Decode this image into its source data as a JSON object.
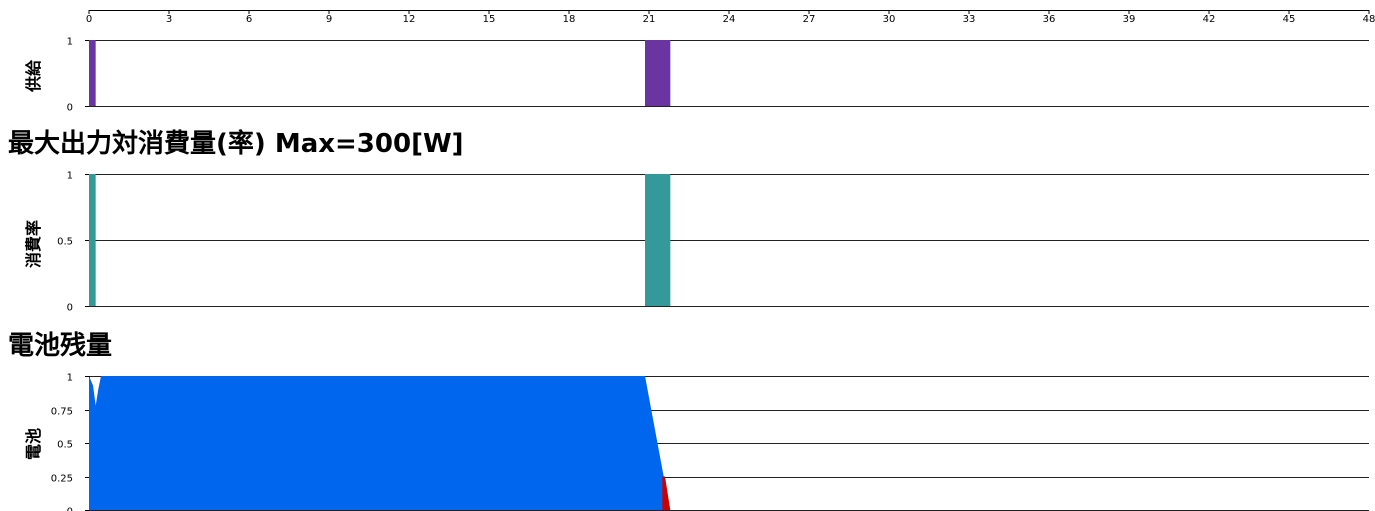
{
  "x_axis": {
    "ticks": [
      "0",
      "3",
      "6",
      "9",
      "12",
      "15",
      "18",
      "21",
      "24",
      "27",
      "30",
      "33",
      "36",
      "39",
      "42",
      "45",
      "48"
    ]
  },
  "chart_data": [
    {
      "type": "bar",
      "title": "",
      "ylabel": "供給",
      "xlim": [
        0,
        48
      ],
      "ylim": [
        0,
        1
      ],
      "yticks": [
        "0",
        "1"
      ],
      "color": "#6a35a0",
      "bars": [
        {
          "x0": 0.0,
          "x1": 0.25,
          "y": 1
        },
        {
          "x0": 20.85,
          "x1": 21.8,
          "y": 1
        }
      ]
    },
    {
      "type": "bar",
      "title": "最大出力対消費量(率) Max=300[W]",
      "ylabel": "消費率",
      "xlim": [
        0,
        48
      ],
      "ylim": [
        0,
        1
      ],
      "yticks": [
        "0",
        "0.5",
        "1"
      ],
      "color": "#339999",
      "bars": [
        {
          "x0": 0.0,
          "x1": 0.25,
          "y": 1
        },
        {
          "x0": 20.85,
          "x1": 21.8,
          "y": 1
        }
      ]
    },
    {
      "type": "area",
      "title": "電池残量",
      "ylabel": "電池",
      "xlim": [
        0,
        48
      ],
      "ylim": [
        0,
        1
      ],
      "yticks": [
        "0",
        "0.25",
        "0.5",
        "0.75",
        "1"
      ],
      "series": [
        {
          "color": "#0066ee",
          "points": [
            [
              0,
              1
            ],
            [
              0.15,
              0.93
            ],
            [
              0.25,
              0.78
            ],
            [
              0.35,
              0.9
            ],
            [
              0.45,
              1
            ],
            [
              20.85,
              1
            ],
            [
              21.55,
              0.25
            ],
            [
              21.55,
              0
            ]
          ]
        },
        {
          "color": "#cc0000",
          "points": [
            [
              21.5,
              0.25
            ],
            [
              21.6,
              0.25
            ],
            [
              21.8,
              0
            ],
            [
              21.5,
              0
            ]
          ]
        }
      ]
    }
  ]
}
